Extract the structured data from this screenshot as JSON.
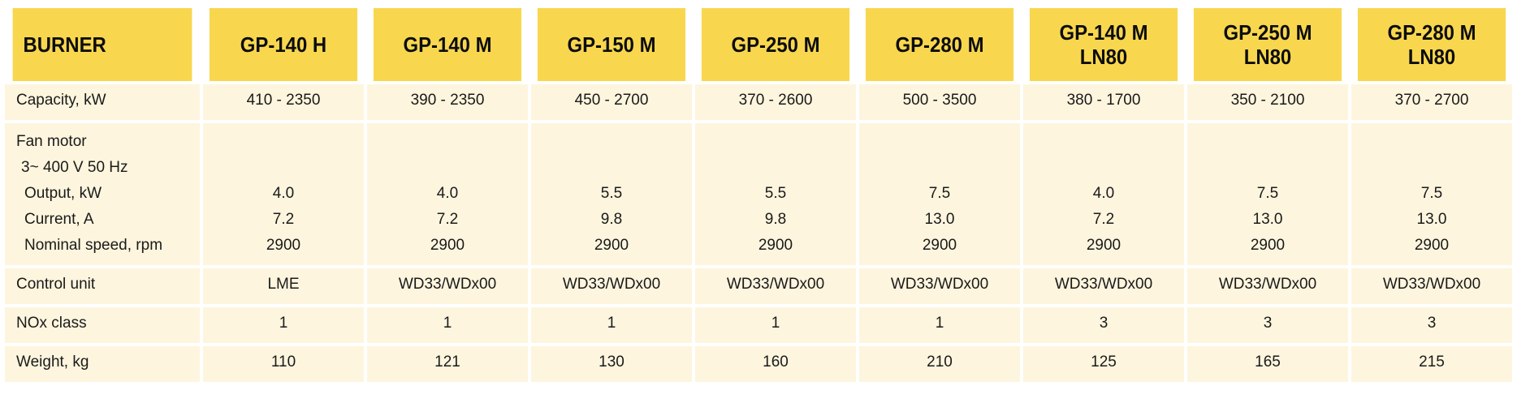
{
  "header": {
    "label": "BURNER",
    "models": [
      [
        "GP-140 H"
      ],
      [
        "GP-140 M"
      ],
      [
        "GP-150 M"
      ],
      [
        "GP-250 M"
      ],
      [
        "GP-280 M"
      ],
      [
        "GP-140 M",
        "LN80"
      ],
      [
        "GP-250 M",
        "LN80"
      ],
      [
        "GP-280 M",
        "LN80"
      ]
    ]
  },
  "rows": {
    "capacity": {
      "label": "Capacity, kW",
      "values": [
        "410 - 2350",
        "390 - 2350",
        "450 - 2700",
        "370 - 2600",
        "500 - 3500",
        "380 - 1700",
        "350 - 2100",
        "370 - 2700"
      ]
    },
    "fan_motor": {
      "label": "Fan motor",
      "supply": "3~ 400 V 50 Hz",
      "output_label": "Output, kW",
      "current_label": "Current, A",
      "speed_label": "Nominal speed, rpm",
      "output": [
        "4.0",
        "4.0",
        "5.5",
        "5.5",
        "7.5",
        "4.0",
        "7.5",
        "7.5"
      ],
      "current": [
        "7.2",
        "7.2",
        "9.8",
        "9.8",
        "13.0",
        "7.2",
        "13.0",
        "13.0"
      ],
      "speed": [
        "2900",
        "2900",
        "2900",
        "2900",
        "2900",
        "2900",
        "2900",
        "2900"
      ]
    },
    "control_unit": {
      "label": "Control unit",
      "values": [
        "LME",
        "WD33/WDx00",
        "WD33/WDx00",
        "WD33/WDx00",
        "WD33/WDx00",
        "WD33/WDx00",
        "WD33/WDx00",
        "WD33/WDx00"
      ]
    },
    "nox_class": {
      "label": "NOx class",
      "values": [
        "1",
        "1",
        "1",
        "1",
        "1",
        "3",
        "3",
        "3"
      ]
    },
    "weight": {
      "label": "Weight, kg",
      "values": [
        "110",
        "121",
        "130",
        "160",
        "210",
        "125",
        "165",
        "215"
      ]
    }
  }
}
